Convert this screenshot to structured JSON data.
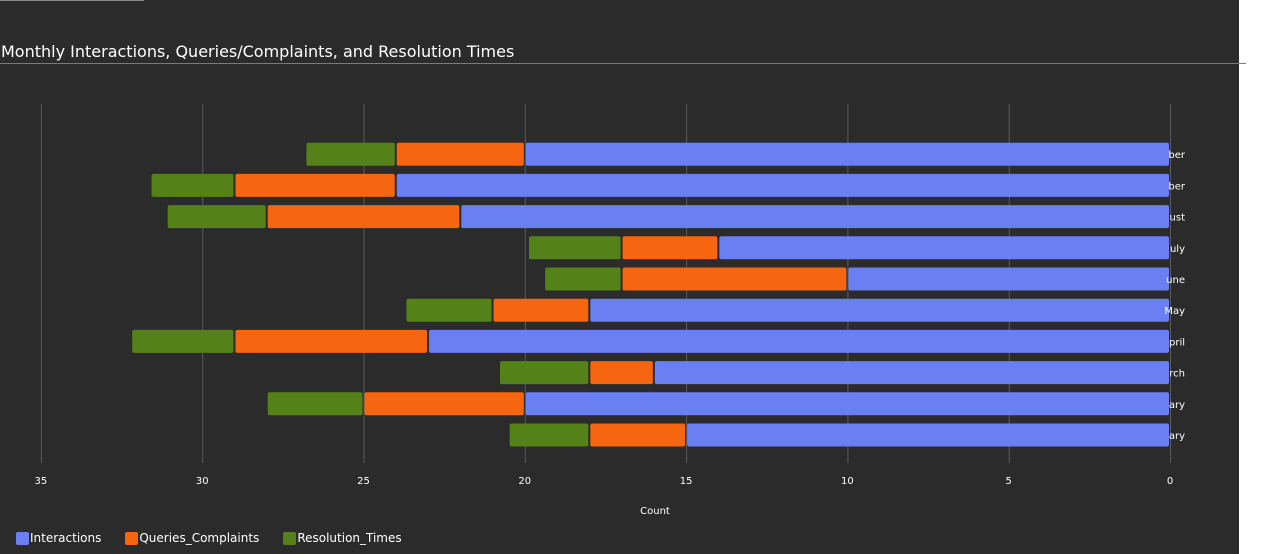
{
  "chart_data": {
    "type": "bar",
    "orientation": "horizontal-stacked",
    "title": "Monthly Interactions, Queries/Complaints, and Resolution Times",
    "xlabel": "Count",
    "ylabel": "",
    "x_reversed": true,
    "xlim": [
      0,
      35
    ],
    "xticks": [
      0,
      5,
      10,
      15,
      20,
      25,
      30,
      35
    ],
    "grid": true,
    "legend_position": "bottom-left",
    "categories": [
      "ary",
      "ary",
      "rch",
      "pril",
      "May",
      "une",
      "uly",
      "ust",
      "ber",
      "ber"
    ],
    "series": [
      {
        "name": "Interactions",
        "color": "#6a7ff2",
        "values": [
          15,
          20,
          16,
          23,
          18,
          10,
          14,
          22,
          24,
          20
        ]
      },
      {
        "name": "Queries_Complaints",
        "color": "#f6650f",
        "values": [
          3,
          5,
          2,
          6,
          3,
          7,
          3,
          6,
          5,
          4
        ]
      },
      {
        "name": "Resolution_Times",
        "color": "#548219",
        "values": [
          2.5,
          3,
          2.8,
          3.2,
          2.7,
          2.4,
          2.9,
          3.1,
          2.6,
          2.8
        ]
      }
    ]
  }
}
